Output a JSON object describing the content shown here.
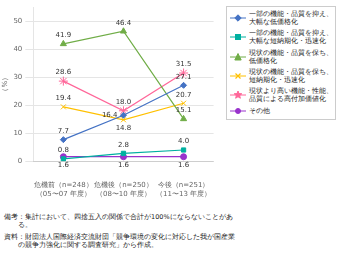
{
  "chart_data": {
    "type": "line",
    "categories": [
      "危機前（n=248）\n（05〜07 年度）",
      "危機後（n=250）\n（08〜10 年度）",
      "今後（n=251）\n（11〜13 年度）"
    ],
    "series": [
      {
        "name": "一部の機能・品質を抑え、\n大幅な低価格化",
        "color": "#4472C4",
        "marker": "diamond",
        "values": [
          7.7,
          16.4,
          27.1
        ],
        "value_labels": [
          "7.7",
          "16.4",
          "27.1"
        ]
      },
      {
        "name": "一部の機能・品質を抑え、\n大幅な短納期化・迅速化",
        "color": "#00B0A0",
        "marker": "square",
        "values": [
          0.8,
          2.8,
          4.0
        ],
        "value_labels": [
          "0.8",
          "2.8",
          "4.0"
        ]
      },
      {
        "name": "現状の機能・品質を保ち、\n低価格化",
        "color": "#70AD47",
        "marker": "triangle",
        "values": [
          41.9,
          46.4,
          15.1
        ],
        "value_labels": [
          "41.9",
          "46.4",
          "15.1"
        ]
      },
      {
        "name": "現状の機能・品質を保ち、\n短納期化・迅速化",
        "color": "#FFC000",
        "marker": "x",
        "values": [
          19.4,
          14.8,
          20.7
        ],
        "value_labels": [
          "19.4",
          "14.8",
          "20.7"
        ]
      },
      {
        "name": "現状より高い機能・性能、\n品質による高付加価値化",
        "color": "#FF6699",
        "marker": "star",
        "values": [
          28.6,
          18.0,
          31.5
        ],
        "value_labels": [
          "28.6",
          "18.0",
          "31.5"
        ]
      },
      {
        "name": "その他",
        "color": "#9932CC",
        "marker": "circle",
        "values": [
          1.6,
          1.6,
          1.6
        ],
        "value_labels": [
          "1.6",
          "1.6",
          "1.6"
        ]
      }
    ],
    "ylim": [
      0,
      55
    ],
    "yticks": [
      0,
      10,
      20,
      30,
      40,
      50
    ],
    "ylabel": "（%）",
    "grid": true,
    "data_labels": true,
    "legend": "right",
    "annotations": [
      "備考：集計において、四捨五入の関係で合計が100%にならないことがあ\n       る。",
      "資料：財団法人国際経済交流財団「競争環境の変化に対応した我が国産業\n       の競争力強化に関する調査研究」から作成。"
    ]
  }
}
